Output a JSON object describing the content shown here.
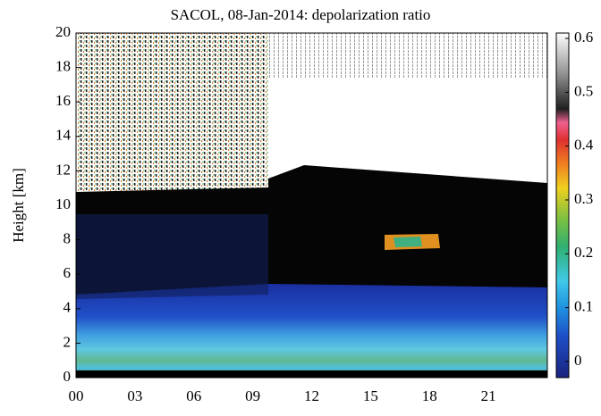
{
  "chart_data": {
    "type": "heatmap",
    "title": "SACOL, 08-Jan-2014: depolarization ratio",
    "y_label": "Height [km]",
    "xlim": [
      0,
      24
    ],
    "xticks": [
      {
        "value": 0,
        "label": "00"
      },
      {
        "value": 3,
        "label": "03"
      },
      {
        "value": 6,
        "label": "06"
      },
      {
        "value": 9,
        "label": "09"
      },
      12,
      15,
      18,
      21
    ],
    "ylim": [
      0,
      20
    ],
    "yticks": [
      0,
      2,
      4,
      6,
      8,
      10,
      12,
      14,
      16,
      18,
      20
    ],
    "clim": [
      -0.03,
      0.61
    ],
    "cticks": [
      0,
      0.1,
      0.2,
      0.3,
      0.4,
      0.5,
      0.6
    ]
  }
}
